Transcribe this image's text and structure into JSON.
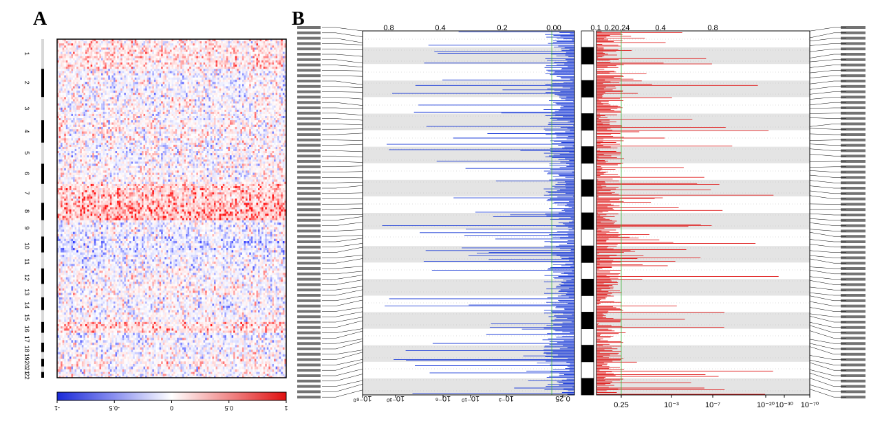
{
  "panel_labels": {
    "a": "A",
    "b": "B"
  },
  "colors": {
    "amp": "#e02020",
    "del": "#1f3fd8",
    "band": "#e4e4e4",
    "cen": "#000000"
  },
  "chart_data": [
    {
      "type": "heatmap",
      "panel": "A",
      "row_labels": [
        "1",
        "2",
        "3",
        "4",
        "5",
        "6",
        "7",
        "8",
        "9",
        "10",
        "11",
        "12",
        "13",
        "14",
        "15",
        "16",
        "17",
        "18",
        "19",
        "20",
        "21",
        "22"
      ],
      "row_fractions": [
        0.082,
        0.078,
        0.064,
        0.062,
        0.058,
        0.056,
        0.052,
        0.048,
        0.045,
        0.044,
        0.044,
        0.043,
        0.037,
        0.035,
        0.033,
        0.03,
        0.027,
        0.026,
        0.019,
        0.021,
        0.015,
        0.016
      ],
      "row_bias": [
        0.2,
        -0.05,
        0.0,
        0.05,
        -0.02,
        0.02,
        0.4,
        0.55,
        -0.1,
        -0.2,
        -0.1,
        0.0,
        0.05,
        -0.05,
        0.0,
        0.3,
        -0.1,
        -0.05,
        0.0,
        0.1,
        0.0,
        0.0
      ],
      "n_columns": 130,
      "colorbar_ticks": [
        "-1",
        "-0.5",
        "0",
        "0.5",
        "1"
      ],
      "colorbar_range": [
        -1,
        1
      ]
    },
    {
      "type": "line",
      "panel": "B",
      "deletion_axis_top_ticks": [
        "0.8",
        "0.4",
        "0.2",
        "0.00"
      ],
      "deletion_axis_bottom_ticks": [
        "10⁻⁶⁰",
        "10⁻³⁰",
        "10⁻⁶",
        "10⁻¹⁰",
        "10⁻³",
        "0.25"
      ],
      "amplification_axis_top_ticks": [
        "0.1",
        "0.20.24",
        "0.4",
        "0.8"
      ],
      "amplification_axis_bottom_ticks": [
        "0.25",
        "10⁻³",
        "10⁻⁷",
        "10⁻²⁰",
        "10⁻³⁰",
        "10⁻⁷⁰"
      ],
      "chromosome_bands": 11,
      "significance_threshold": 0.25
    }
  ]
}
